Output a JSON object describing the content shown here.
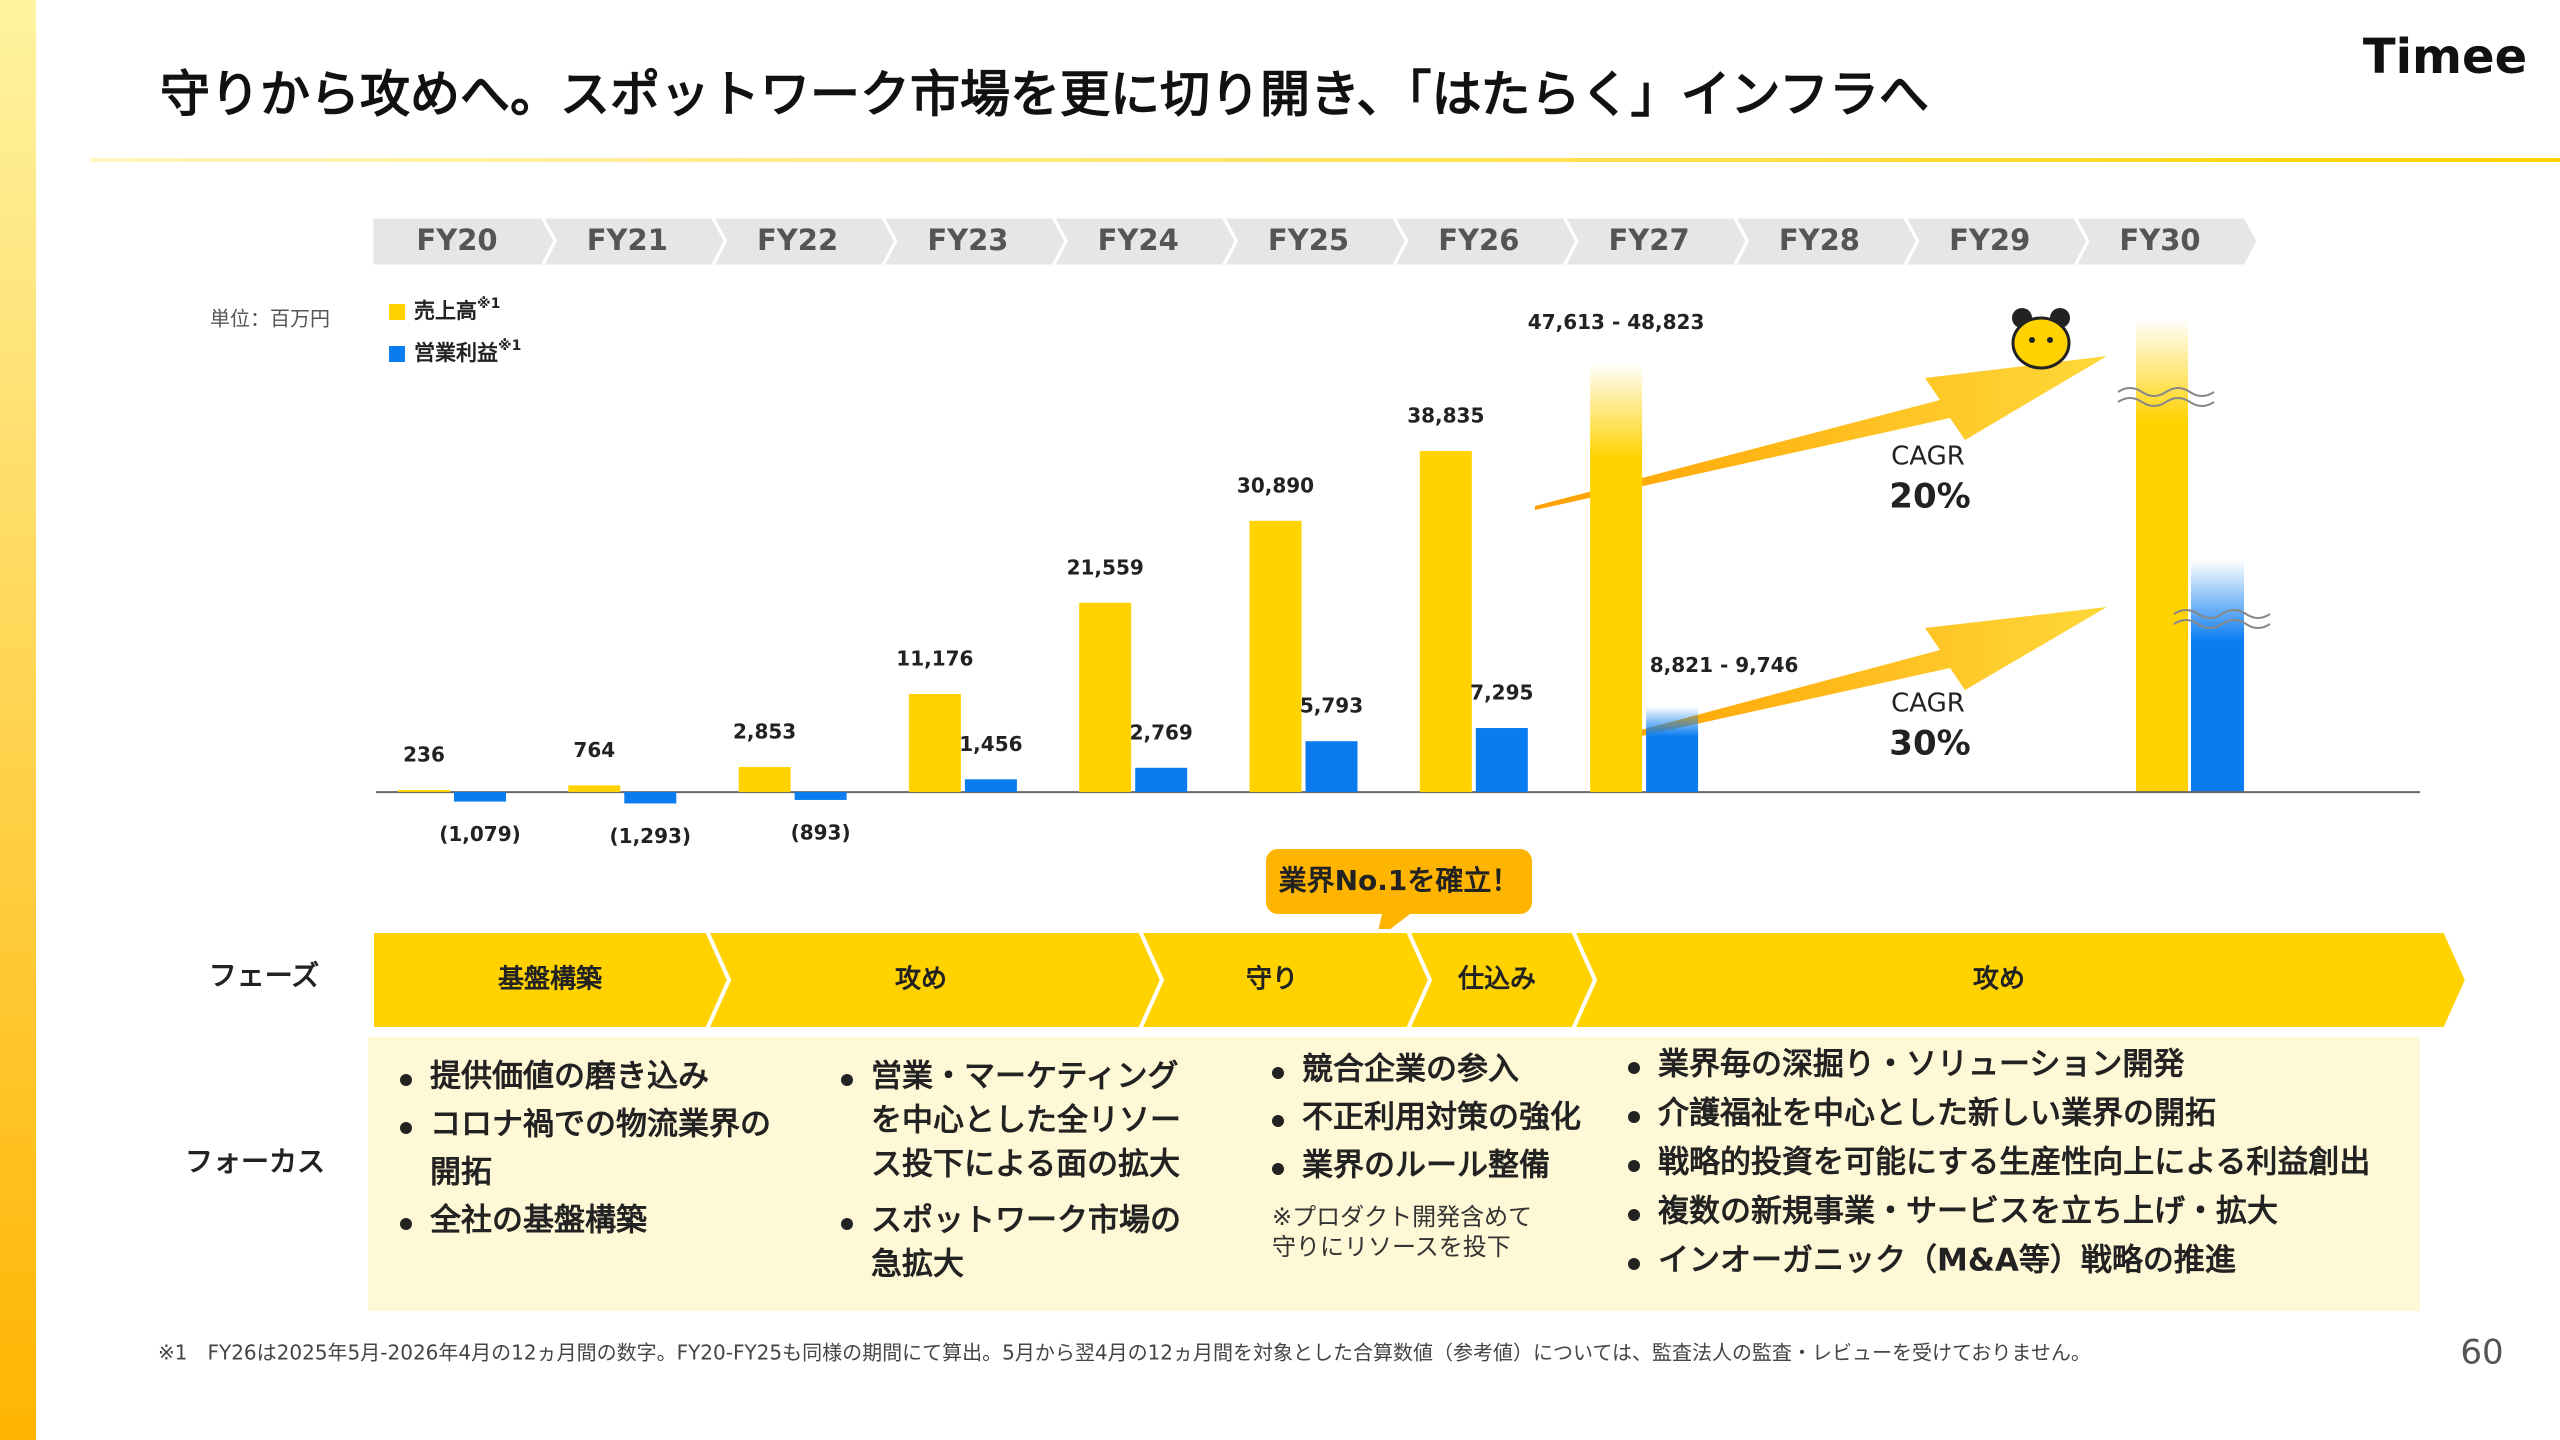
{
  "slide": {
    "title": "守りから攻めへ。スポットワーク市場を更に切り開き、「はたらく」インフラへ",
    "logo": "Timee",
    "page_number": "60",
    "footnote": "※1　FY26は2025年5月-2026年4月の12ヵ月間の数字。FY20-FY25も同様の期間にて算出。5月から翌4月の12ヵ月間を対象とした合算数値（参考値）については、監査法人の監査・レビューを受けておりません。"
  },
  "chart_data": {
    "type": "bar",
    "unit_label": "単位：百万円",
    "categories": [
      "FY20",
      "FY21",
      "FY22",
      "FY23",
      "FY24",
      "FY25",
      "FY26",
      "FY27",
      "FY28",
      "FY29",
      "FY30"
    ],
    "ylim": [
      -5000,
      50000
    ],
    "series": [
      {
        "name": "売上高",
        "name_note": "※1",
        "color": "#FFD200",
        "values": [
          236,
          764,
          2853,
          11176,
          21559,
          30890,
          38835,
          47613,
          null,
          null,
          null
        ],
        "values_high": [
          null,
          null,
          null,
          null,
          null,
          null,
          null,
          48823,
          null,
          null,
          null
        ],
        "value_labels": [
          "236",
          "764",
          "2,853",
          "11,176",
          "21,559",
          "30,890",
          "38,835",
          "47,613 - 48,823",
          null,
          null,
          null
        ]
      },
      {
        "name": "営業利益",
        "name_note": "※1",
        "color": "#0A7CF0",
        "values": [
          -1079,
          -1293,
          -893,
          1456,
          2769,
          5793,
          7295,
          8821,
          null,
          null,
          null
        ],
        "values_high": [
          null,
          null,
          null,
          null,
          null,
          null,
          null,
          9746,
          null,
          null,
          null
        ],
        "value_labels": [
          "(1,079)",
          "(1,293)",
          "(893)",
          "1,456",
          "2,769",
          "5,793",
          "7,295",
          "8,821 - 9,746",
          null,
          null,
          null
        ]
      }
    ],
    "annotations": [
      {
        "label": "CAGR",
        "value_label": "20%"
      },
      {
        "label": "CAGR",
        "value_label": "30%"
      }
    ]
  },
  "callout": "業界No.1を確立！",
  "phase_label": "フェーズ",
  "phases": [
    "基盤構築",
    "攻め",
    "守り",
    "仕込み",
    "攻め"
  ],
  "focus_label": "フォーカス",
  "focus": [
    {
      "items": [
        [
          "提供価値の磨き込み"
        ],
        [
          "コロナ禍での物流業界の",
          "開拓"
        ],
        [
          "全社の基盤構築"
        ]
      ]
    },
    {
      "items": [
        [
          "営業・マーケティング",
          "を中心とした全リソー",
          "ス投下による面の拡大"
        ],
        [
          "スポットワーク市場の",
          "急拡大"
        ]
      ]
    },
    {
      "items": [
        [
          "競合企業の参入"
        ],
        [
          "不正利用対策の強化"
        ],
        [
          "業界のルール整備"
        ]
      ],
      "note": [
        "※プロダクト開発含めて",
        "守りにリソースを投下"
      ]
    },
    {
      "items": [
        [
          "業界毎の深掘り・ソリューション開発"
        ],
        [
          "介護福祉を中心とした新しい業界の開拓"
        ],
        [
          "戦略的投資を可能にする生産性向上による利益創出"
        ],
        [
          "複数の新規事業・サービスを立ち上げ・拡大"
        ],
        [
          "インオーガニック（M&A等）戦略の推進"
        ]
      ]
    }
  ]
}
